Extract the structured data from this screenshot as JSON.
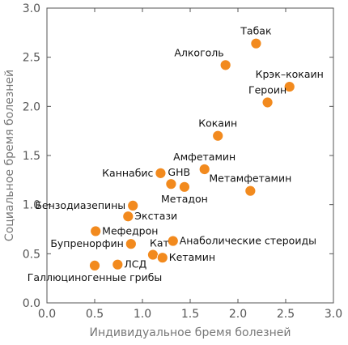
{
  "chart_data": {
    "type": "scatter",
    "title": "",
    "xlabel": "Индивидуальное бремя болезней",
    "ylabel": "Социальное бремя болезней",
    "xlim": [
      0,
      3
    ],
    "ylim": [
      0,
      3
    ],
    "x_ticks": [
      "0.0",
      "0.5",
      "1.0",
      "1.5",
      "2.0",
      "2.5",
      "3.0"
    ],
    "y_ticks": [
      "0.0",
      "0.5",
      "1.0",
      "1.5",
      "2.0",
      "2.5",
      "3.0"
    ],
    "grid": false,
    "marker_color": "#f28a1e",
    "points": [
      {
        "label": "Табак",
        "x": 2.19,
        "y": 2.64,
        "label_pos": "above"
      },
      {
        "label": "Алкоголь",
        "x": 1.87,
        "y": 2.42,
        "label_pos": "above-left"
      },
      {
        "label": "Крэк–кокаин",
        "x": 2.54,
        "y": 2.2,
        "label_pos": "above"
      },
      {
        "label": "Героин",
        "x": 2.31,
        "y": 2.04,
        "label_pos": "above"
      },
      {
        "label": "Кокаин",
        "x": 1.79,
        "y": 1.7,
        "label_pos": "above"
      },
      {
        "label": "Амфетамин",
        "x": 1.65,
        "y": 1.36,
        "label_pos": "above"
      },
      {
        "label": "Метамфетамин",
        "x": 2.13,
        "y": 1.14,
        "label_pos": "above"
      },
      {
        "label": "Каннабис",
        "x": 1.19,
        "y": 1.32,
        "label_pos": "left"
      },
      {
        "label": "GHB",
        "x": 1.3,
        "y": 1.21,
        "label_pos": "above-right"
      },
      {
        "label": "Метадон",
        "x": 1.44,
        "y": 1.18,
        "label_pos": "below"
      },
      {
        "label": "Бензодиазепины",
        "x": 0.9,
        "y": 0.99,
        "label_pos": "left"
      },
      {
        "label": "Экстази",
        "x": 0.85,
        "y": 0.88,
        "label_pos": "right"
      },
      {
        "label": "Мефедрон",
        "x": 0.51,
        "y": 0.73,
        "label_pos": "right"
      },
      {
        "label": "Анаболические стероиды",
        "x": 1.32,
        "y": 0.63,
        "label_pos": "right"
      },
      {
        "label": "Бупренорфин",
        "x": 0.88,
        "y": 0.6,
        "label_pos": "left"
      },
      {
        "label": "Кат",
        "x": 1.11,
        "y": 0.49,
        "label_pos": "above-right"
      },
      {
        "label": "Кетамин",
        "x": 1.21,
        "y": 0.46,
        "label_pos": "right"
      },
      {
        "label": "ЛСД",
        "x": 0.74,
        "y": 0.39,
        "label_pos": "right"
      },
      {
        "label": "Галлюциногенные грибы",
        "x": 0.5,
        "y": 0.38,
        "label_pos": "below"
      }
    ]
  }
}
